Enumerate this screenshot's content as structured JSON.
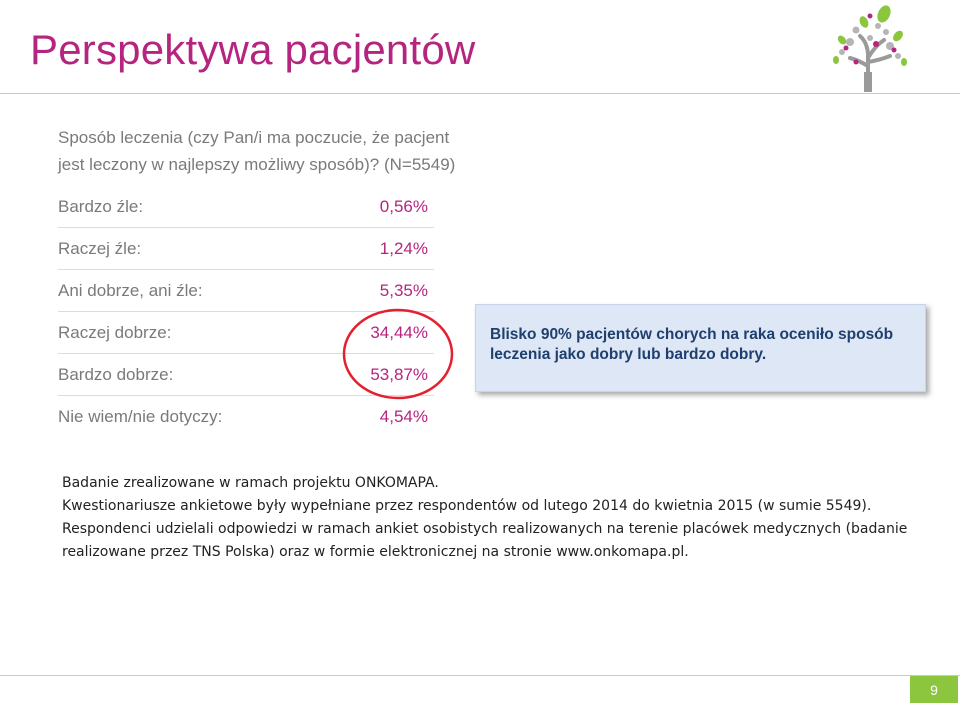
{
  "slide": {
    "title": "Perspektywa pacjentów",
    "page_number": "9"
  },
  "question": {
    "line1": "Sposób leczenia (czy Pan/i ma poczucie, że pacjent",
    "line2": "jest leczony w najlepszy możliwy sposób)? (N=5549)"
  },
  "results": [
    {
      "label": "Bardzo źle:",
      "value": "0,56%"
    },
    {
      "label": "Raczej źle:",
      "value": "1,24%"
    },
    {
      "label": "Ani dobrze, ani źle:",
      "value": "5,35%"
    },
    {
      "label": "Raczej dobrze:",
      "value": "34,44%"
    },
    {
      "label": "Bardzo dobrze:",
      "value": "53,87%"
    },
    {
      "label": "Nie wiem/nie dotyczy:",
      "value": "4,54%"
    }
  ],
  "callout": {
    "text": "Blisko 90% pacjentów chorych na raka oceniło sposób leczenia jako dobry lub bardzo dobry."
  },
  "notes": {
    "line1": "Badanie zrealizowane w ramach projektu ONKOMAPA.",
    "line2": "Kwestionariusze ankietowe były wypełniane przez respondentów od lutego 2014 do kwietnia 2015 (w sumie 5549). Respondenci udzielali odpowiedzi w ramach ankiet osobistych realizowanych na terenie placówek medycznych (badanie realizowane przez TNS Polska) oraz w formie elektronicznej na stronie www.onkomapa.pl."
  },
  "colors": {
    "accent": "#b5257f",
    "green": "#8cc63f",
    "callout_bg": "#dde7f5",
    "callout_text": "#1f3f6e",
    "highlight_ellipse": "#e5202e"
  },
  "icons": {
    "logo": "tree-logo-icon"
  }
}
